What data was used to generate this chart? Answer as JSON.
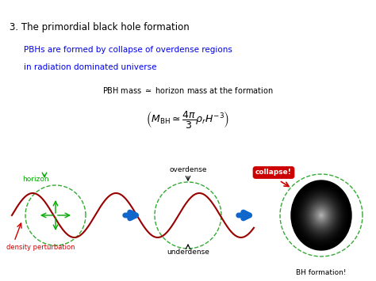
{
  "title": "3. The primordial black hole formation",
  "subtitle_line1": "PBHs are formed by collapse of overdense regions",
  "subtitle_line2": "in radiation dominated universe",
  "subtitle_color": "#0000EE",
  "pbh_mass_text": "PBH mass $\\simeq$ horizon mass at the formation",
  "formula": "$\\left( M_{\\mathrm{BH}} \\simeq \\dfrac{4\\pi}{3}\\rho_r H^{-3} \\right)$",
  "label_horizon": "horizon",
  "label_density": "density perturbation",
  "label_overdense": "overdense",
  "label_underdense": "underdense",
  "label_collapse": "collapse!",
  "label_bhformation": "BH formation!",
  "horizon_color": "#00AA00",
  "density_color": "#CC0000",
  "arrow_color": "#1166CC",
  "wave_color": "#990000",
  "dashed_color": "#33AA33",
  "collapse_bg": "#CC0000",
  "collapse_text_color": "#FFFFFF",
  "bg_color": "#FFFFFF"
}
